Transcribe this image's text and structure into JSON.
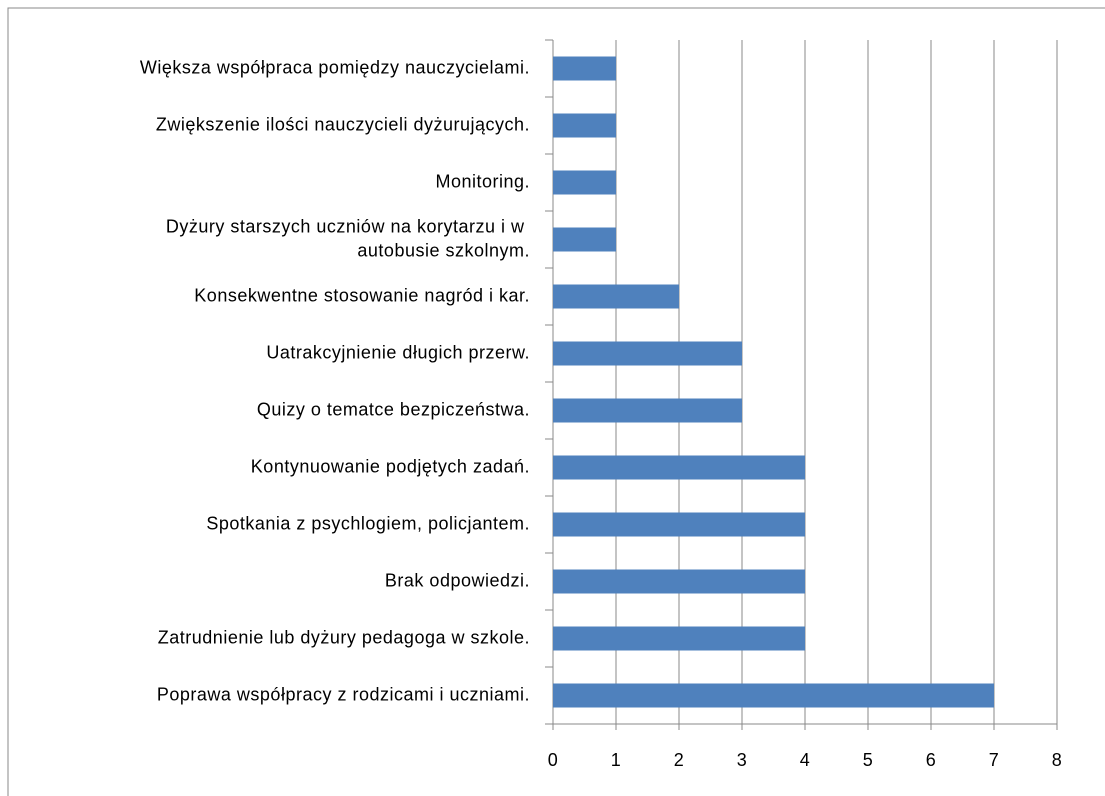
{
  "chart_data": {
    "type": "barh",
    "categories": [
      "Większa współpraca pomiędzy nauczycielami.",
      "Zwiększenie ilości nauczycieli dyżurujących.",
      "Monitoring.",
      "Dyżury starszych uczniów na korytarzu i w autobusie szkolnym.",
      "Konsekwentne stosowanie nagród i kar.",
      "Uatrakcyjnienie długich przerw.",
      "Quizy o tematce bezpiczeństwa.",
      "Kontynuowanie podjętych zadań.",
      "Spotkania z psychlogiem, policjantem.",
      "Brak odpowiedzi.",
      "Zatrudnienie lub dyżury pedagoga w szkole.",
      "Poprawa współpracy z rodzicami i uczniami."
    ],
    "values": [
      1,
      1,
      1,
      1,
      2,
      3,
      3,
      4,
      4,
      4,
      4,
      7
    ],
    "color": "#4f81bd",
    "xlim": [
      0,
      8
    ],
    "xticks": [
      0,
      1,
      2,
      3,
      4,
      5,
      6,
      7,
      8
    ],
    "grid": true
  }
}
